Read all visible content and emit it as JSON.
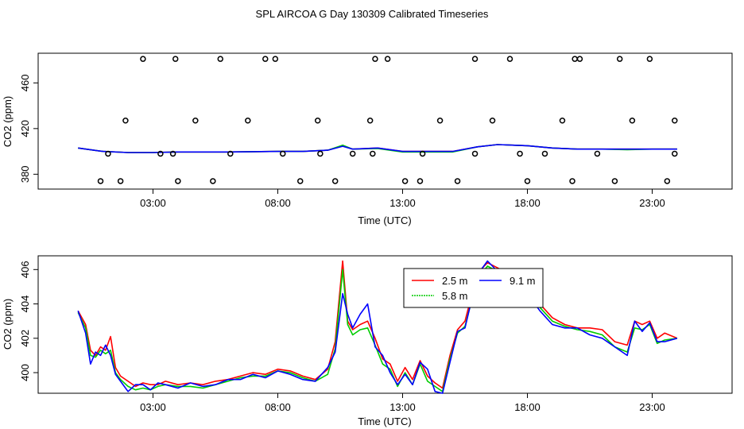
{
  "title": "SPL AIRCOA G  Day 130309  Calibrated Timeseries",
  "chart_data": [
    {
      "type": "line",
      "xlabel": "Time (UTC)",
      "ylabel": "CO2 (ppm)",
      "xlim": [
        -1.6,
        26.2
      ],
      "ylim": [
        367,
        486
      ],
      "xticks": [
        3,
        8,
        13,
        18,
        23
      ],
      "xtick_labels": [
        "03:00",
        "08:00",
        "13:00",
        "18:00",
        "23:00"
      ],
      "yticks": [
        380,
        420,
        460
      ],
      "ytick_labels": [
        "380",
        "420",
        "460"
      ],
      "series": [
        {
          "style": "line",
          "color": "#ff0000",
          "x": [
            0,
            1,
            2,
            3,
            4,
            5,
            6,
            7,
            8,
            9,
            10,
            10.6,
            11,
            12,
            13,
            14,
            15,
            16,
            16.8,
            18,
            19,
            20,
            21,
            22,
            23,
            24
          ],
          "y": [
            403,
            400,
            399,
            399,
            399.5,
            399.5,
            399.5,
            399.8,
            400,
            400,
            401,
            405,
            402,
            403,
            400,
            400,
            400,
            404,
            406,
            405,
            403,
            402,
            402,
            402,
            402,
            402
          ]
        },
        {
          "style": "line",
          "color": "#00cc00",
          "x": [
            0,
            1,
            2,
            3,
            4,
            5,
            6,
            7,
            8,
            9,
            10,
            10.6,
            11,
            12,
            13,
            14,
            15,
            16,
            16.8,
            18,
            19,
            20,
            21,
            22,
            23,
            24
          ],
          "y": [
            403,
            400,
            399,
            399,
            399.5,
            399.5,
            399.5,
            399.8,
            400,
            400,
            401,
            405.5,
            402,
            402.5,
            399.5,
            399.5,
            399.5,
            404,
            406,
            405,
            403,
            402,
            402,
            401.5,
            402,
            402
          ]
        },
        {
          "style": "line",
          "color": "#0000ff",
          "x": [
            0,
            1,
            2,
            3,
            4,
            5,
            6,
            7,
            8,
            9,
            10,
            10.6,
            11,
            12,
            13,
            14,
            15,
            16,
            16.8,
            18,
            19,
            20,
            21,
            22,
            23,
            24
          ],
          "y": [
            403,
            400,
            399,
            399,
            399.5,
            399.5,
            399.5,
            399.8,
            400,
            400,
            401,
            404.5,
            402,
            403,
            400,
            400,
            400,
            404,
            406,
            405,
            403,
            402,
            402,
            402,
            402,
            402
          ]
        },
        {
          "style": "points",
          "color": "#000000",
          "x": [
            1.2,
            1.9,
            2.6,
            3.3,
            4.0,
            4.7,
            5.4,
            6.1,
            6.8,
            7.5,
            8.2,
            8.9,
            9.6,
            10.3,
            11.0,
            11.7,
            12.4,
            13.1,
            13.8,
            14.5,
            15.2,
            15.9,
            16.6,
            17.3,
            18.0,
            18.7,
            19.4,
            20.1,
            20.8,
            21.5,
            22.2,
            22.9,
            23.6,
            3.9,
            7.9,
            11.9,
            15.9,
            19.9,
            23.9,
            1.7,
            5.7,
            9.7,
            13.7,
            17.7,
            21.7,
            0.9,
            3.8,
            11.8,
            19.8,
            23.9
          ],
          "y": [
            398,
            427,
            481,
            398,
            374,
            427,
            374,
            398,
            427,
            481,
            398,
            374,
            427,
            374,
            398,
            427,
            481,
            374,
            398,
            427,
            374,
            398,
            427,
            481,
            374,
            398,
            427,
            481,
            398,
            374,
            427,
            481,
            374,
            481,
            481,
            481,
            481,
            481,
            398,
            374,
            481,
            398,
            374,
            398,
            481,
            374,
            398,
            398,
            374,
            427
          ]
        }
      ]
    },
    {
      "type": "line",
      "xlabel": "Time (UTC)",
      "ylabel": "CO2 (ppm)",
      "xlim": [
        -1.6,
        26.2
      ],
      "ylim": [
        398.8,
        406.8
      ],
      "xticks": [
        3,
        8,
        13,
        18,
        23
      ],
      "xtick_labels": [
        "03:00",
        "08:00",
        "13:00",
        "18:00",
        "23:00"
      ],
      "yticks": [
        400,
        402,
        404,
        406
      ],
      "ytick_labels": [
        "400",
        "402",
        "404",
        "406"
      ],
      "legend": [
        {
          "label": "2.5 m",
          "color": "#ff0000"
        },
        {
          "label": "5.8 m",
          "color": "#00cc00"
        },
        {
          "label": "9.1 m",
          "color": "#0000ff"
        }
      ],
      "series": [
        {
          "name": "2.5 m",
          "color": "#ff0000",
          "x": [
            0,
            0.3,
            0.5,
            0.7,
            0.9,
            1.1,
            1.3,
            1.5,
            1.7,
            2.0,
            2.3,
            2.6,
            2.9,
            3.2,
            3.5,
            4,
            4.5,
            5,
            5.5,
            6,
            6.5,
            7,
            7.5,
            8,
            8.5,
            9,
            9.5,
            10,
            10.3,
            10.6,
            10.8,
            11,
            11.3,
            11.6,
            11.9,
            12.2,
            12.5,
            12.8,
            13.1,
            13.4,
            13.7,
            14,
            14.3,
            14.6,
            14.9,
            15.2,
            15.5,
            16,
            16.4,
            16.8,
            17.2,
            17.6,
            18,
            18.5,
            19,
            19.5,
            20,
            20.5,
            21,
            21.5,
            22,
            22.3,
            22.6,
            22.9,
            23.2,
            23.5,
            24
          ],
          "y": [
            403.6,
            402.8,
            401.3,
            401.0,
            401.5,
            401.3,
            402.1,
            400.3,
            399.8,
            399.5,
            399.2,
            399.4,
            399.3,
            399.3,
            399.5,
            399.3,
            399.4,
            399.3,
            399.5,
            399.6,
            399.8,
            400.0,
            399.9,
            400.2,
            400.1,
            399.8,
            399.6,
            400.2,
            401.8,
            406.5,
            403.0,
            402.5,
            402.8,
            403.0,
            402.0,
            400.8,
            400.5,
            399.5,
            400.3,
            399.6,
            400.7,
            399.8,
            399.4,
            399.1,
            401.0,
            402.5,
            403.0,
            405.8,
            406.4,
            406.1,
            405.8,
            405.2,
            404.5,
            404.0,
            403.2,
            402.8,
            402.6,
            402.6,
            402.5,
            401.8,
            401.6,
            403.0,
            402.8,
            403.0,
            402.0,
            402.3,
            402.0
          ]
        },
        {
          "name": "5.8 m",
          "color": "#00cc00",
          "x": [
            0,
            0.3,
            0.5,
            0.7,
            0.9,
            1.1,
            1.3,
            1.5,
            1.7,
            2.0,
            2.3,
            2.6,
            2.9,
            3.2,
            3.5,
            4,
            4.5,
            5,
            5.5,
            6,
            6.5,
            7,
            7.5,
            8,
            8.5,
            9,
            9.5,
            10,
            10.3,
            10.6,
            10.8,
            11,
            11.3,
            11.6,
            11.9,
            12.2,
            12.5,
            12.8,
            13.1,
            13.4,
            13.7,
            14,
            14.3,
            14.6,
            14.9,
            15.2,
            15.5,
            16,
            16.4,
            16.8,
            17.2,
            17.6,
            18,
            18.5,
            19,
            19.5,
            20,
            20.5,
            21,
            21.5,
            22,
            22.3,
            22.6,
            22.9,
            23.2,
            23.5,
            24
          ],
          "y": [
            403.5,
            402.6,
            401.0,
            400.9,
            401.3,
            401.1,
            401.3,
            400.0,
            399.6,
            399.2,
            399.0,
            399.1,
            399.0,
            399.2,
            399.3,
            399.2,
            399.2,
            399.1,
            399.3,
            399.5,
            399.7,
            399.8,
            399.8,
            400.1,
            400.0,
            399.7,
            399.5,
            399.9,
            401.4,
            406.0,
            402.8,
            402.2,
            402.5,
            402.6,
            401.6,
            400.5,
            400.2,
            399.2,
            400.0,
            399.3,
            400.5,
            399.5,
            399.2,
            398.9,
            400.8,
            402.3,
            402.7,
            405.5,
            406.2,
            405.9,
            405.6,
            405.0,
            404.4,
            403.8,
            403.0,
            402.7,
            402.5,
            402.4,
            402.2,
            401.5,
            401.2,
            402.6,
            402.5,
            402.8,
            401.7,
            401.9,
            402.0
          ]
        },
        {
          "name": "9.1 m",
          "color": "#0000ff",
          "x": [
            0,
            0.3,
            0.5,
            0.7,
            0.9,
            1.1,
            1.3,
            1.5,
            1.7,
            2.0,
            2.3,
            2.6,
            2.9,
            3.2,
            3.5,
            4,
            4.5,
            5,
            5.5,
            6,
            6.5,
            7,
            7.5,
            8,
            8.5,
            9,
            9.5,
            10,
            10.3,
            10.6,
            10.8,
            11,
            11.3,
            11.6,
            11.9,
            12.2,
            12.5,
            12.8,
            13.1,
            13.4,
            13.7,
            14,
            14.3,
            14.6,
            14.9,
            15.2,
            15.5,
            16,
            16.4,
            16.8,
            17.2,
            17.6,
            18,
            18.5,
            19,
            19.5,
            20,
            20.5,
            21,
            21.5,
            22,
            22.3,
            22.6,
            22.9,
            23.2,
            23.5,
            24
          ],
          "y": [
            403.6,
            402.3,
            400.5,
            401.2,
            401.0,
            401.6,
            401.0,
            399.9,
            399.5,
            398.9,
            399.3,
            399.3,
            399.0,
            399.4,
            399.3,
            399.1,
            399.4,
            399.2,
            399.3,
            399.6,
            399.6,
            399.9,
            399.7,
            400.1,
            399.9,
            399.6,
            399.5,
            400.3,
            401.2,
            404.6,
            403.4,
            402.6,
            403.4,
            404.0,
            401.5,
            401.0,
            400.0,
            399.3,
            399.9,
            399.3,
            400.6,
            400.2,
            398.9,
            398.8,
            400.6,
            402.4,
            402.6,
            405.7,
            406.5,
            405.9,
            405.5,
            404.8,
            404.6,
            403.6,
            402.8,
            402.6,
            402.6,
            402.2,
            402.0,
            401.5,
            401.0,
            403.0,
            402.4,
            402.9,
            401.8,
            401.8,
            402.0
          ]
        }
      ]
    }
  ]
}
